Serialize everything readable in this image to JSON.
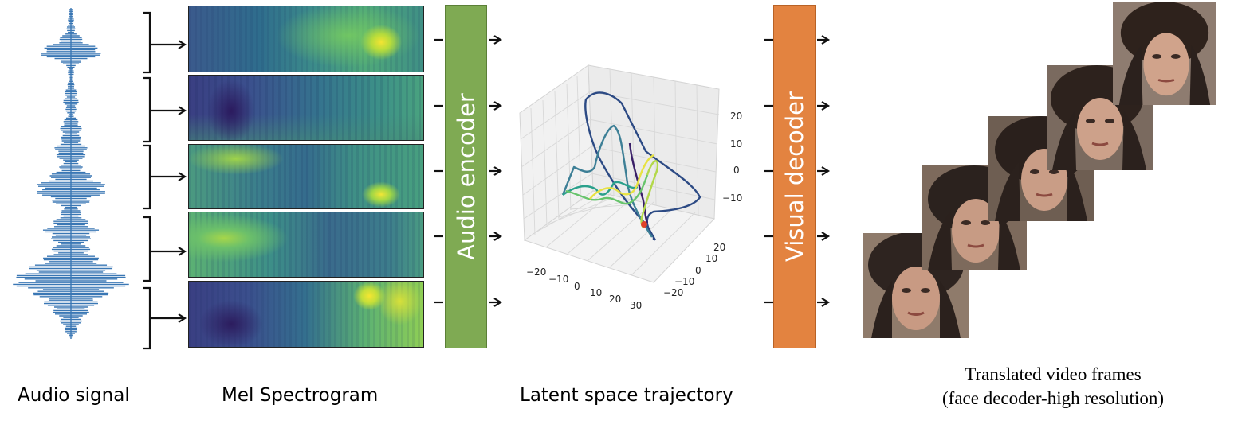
{
  "labels": {
    "audio_signal": "Audio signal",
    "mel_spectrogram": "Mel Spectrogram",
    "latent_trajectory": "Latent space trajectory",
    "frames_line1": "Translated video frames",
    "frames_line2": "(face decoder-high resolution)"
  },
  "blocks": {
    "audio_encoder": "Audio encoder",
    "visual_decoder": "Visual decoder"
  },
  "plot3d": {
    "z_ticks": [
      "20",
      "10",
      "0",
      "−10"
    ],
    "x_ticks": [
      "−20",
      "−10",
      "0",
      "10",
      "20",
      "30"
    ],
    "y_ticks": [
      "20",
      "10",
      "0",
      "−10",
      "−20"
    ]
  },
  "colors": {
    "waveform": "#3a77b4",
    "audio_encoder": "#7faa53",
    "visual_decoder": "#e38340",
    "trajectory_start_marker": "#e0422a"
  }
}
